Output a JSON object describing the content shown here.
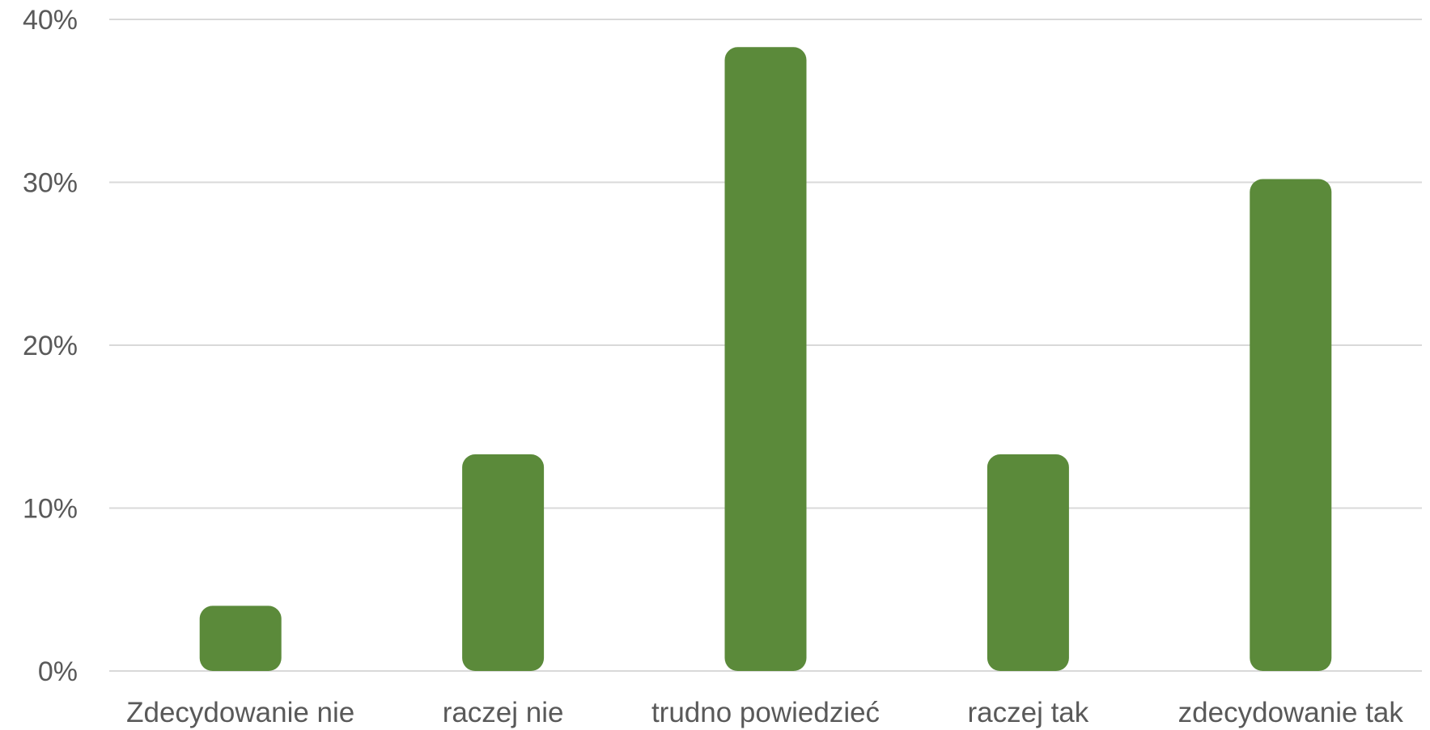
{
  "chart_data": {
    "type": "bar",
    "title": "",
    "xlabel": "",
    "ylabel": "",
    "categories": [
      "Zdecydowanie nie",
      "raczej nie",
      "trudno powiedzieć",
      "raczej tak",
      "zdecydowanie tak"
    ],
    "values": [
      4,
      13.3,
      38.3,
      13.3,
      30.2
    ],
    "value_format": "percent",
    "ylim": [
      0,
      40
    ],
    "yticks": [
      0,
      10,
      20,
      30,
      40
    ],
    "ytick_labels": [
      "0%",
      "10%",
      "20%",
      "30%",
      "40%"
    ],
    "grid": true,
    "legend": "none",
    "colors": {
      "bar": "#5b8a3a",
      "grid": "#d9d9d9",
      "text": "#595959"
    }
  }
}
